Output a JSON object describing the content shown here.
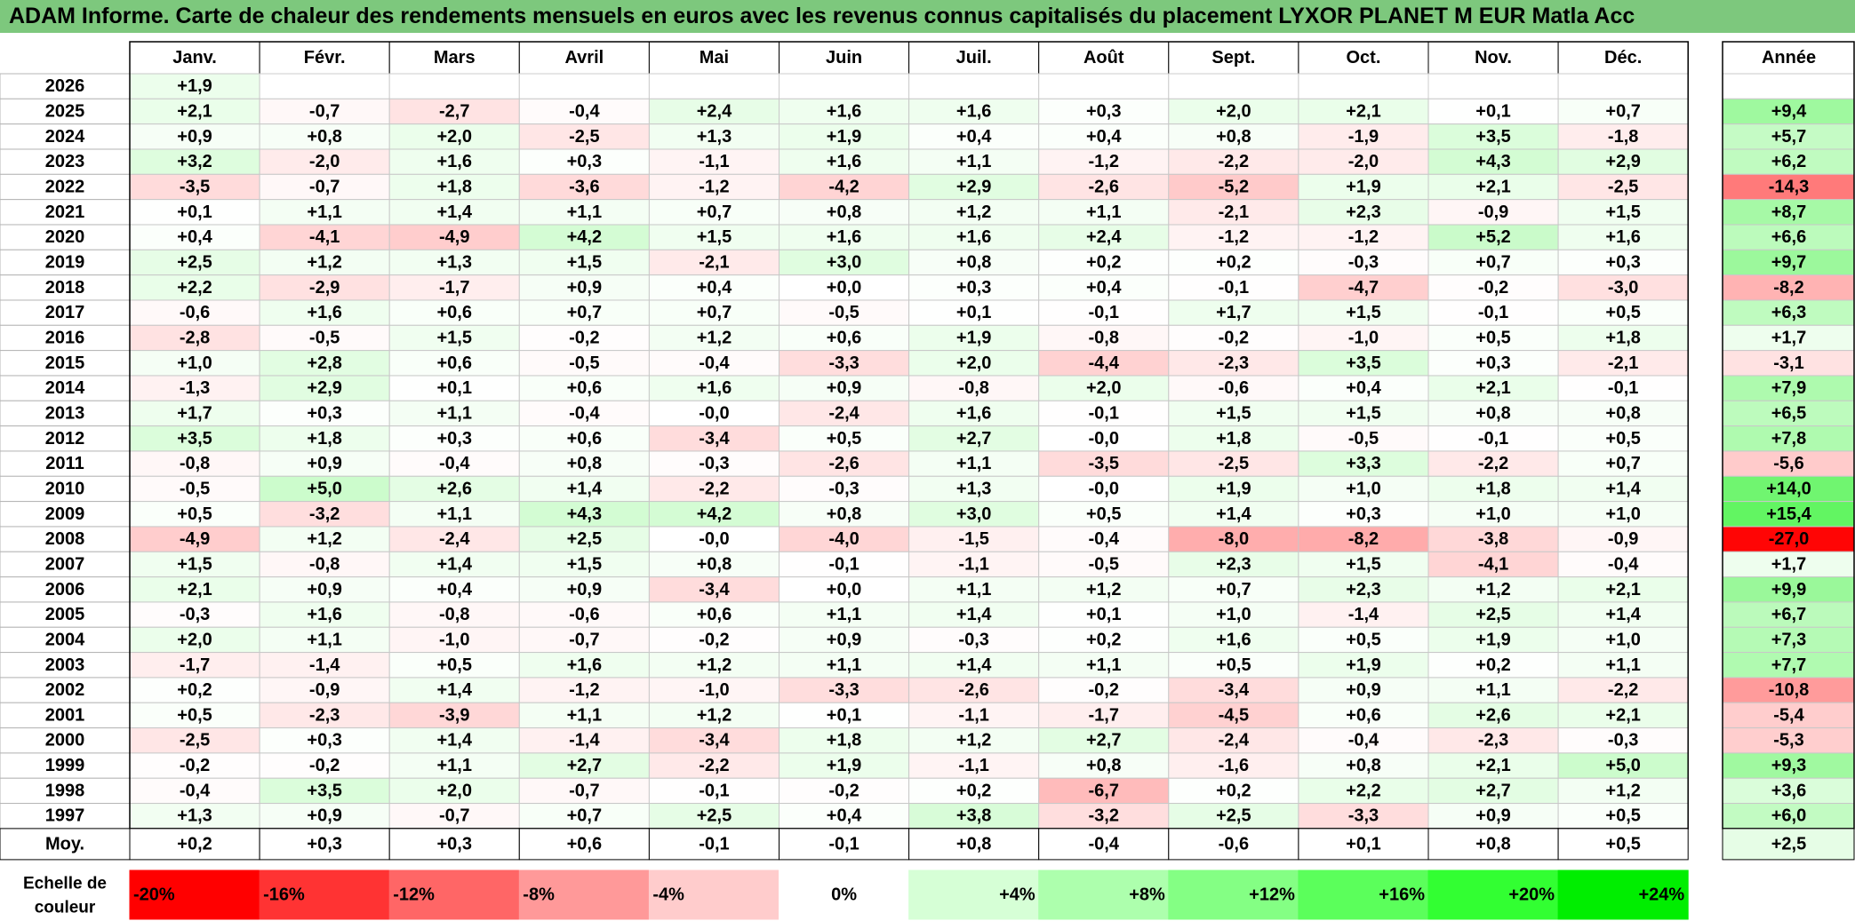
{
  "title": "ADAM Informe. Carte de chaleur des rendements mensuels en euros avec les revenus connus capitalisés du placement LYXOR PLANET M EUR Matla Acc",
  "chart_data": {
    "type": "heatmap",
    "title": "ADAM Informe. Carte de chaleur des rendements mensuels en euros avec les revenus connus capitalisés du placement LYXOR PLANET M EUR Matla Acc",
    "months": [
      "Janv.",
      "Févr.",
      "Mars",
      "Avril",
      "Mai",
      "Juin",
      "Juil.",
      "Août",
      "Sept.",
      "Oct.",
      "Nov.",
      "Déc."
    ],
    "year_header": "Année",
    "rows": [
      {
        "year": "2026",
        "values": [
          "+1,9",
          "",
          "",
          "",
          "",
          "",
          "",
          "",
          "",
          "",
          "",
          ""
        ],
        "annual": ""
      },
      {
        "year": "2025",
        "values": [
          "+2,1",
          "-0,7",
          "-2,7",
          "-0,4",
          "+2,4",
          "+1,6",
          "+1,6",
          "+0,3",
          "+2,0",
          "+2,1",
          "+0,1",
          "+0,7"
        ],
        "annual": "+9,4"
      },
      {
        "year": "2024",
        "values": [
          "+0,9",
          "+0,8",
          "+2,0",
          "-2,5",
          "+1,3",
          "+1,9",
          "+0,4",
          "+0,4",
          "+0,8",
          "-1,9",
          "+3,5",
          "-1,8"
        ],
        "annual": "+5,7"
      },
      {
        "year": "2023",
        "values": [
          "+3,2",
          "-2,0",
          "+1,6",
          "+0,3",
          "-1,1",
          "+1,6",
          "+1,1",
          "-1,2",
          "-2,2",
          "-2,0",
          "+4,3",
          "+2,9"
        ],
        "annual": "+6,2"
      },
      {
        "year": "2022",
        "values": [
          "-3,5",
          "-0,7",
          "+1,8",
          "-3,6",
          "-1,2",
          "-4,2",
          "+2,9",
          "-2,6",
          "-5,2",
          "+1,9",
          "+2,1",
          "-2,5"
        ],
        "annual": "-14,3"
      },
      {
        "year": "2021",
        "values": [
          "+0,1",
          "+1,1",
          "+1,4",
          "+1,1",
          "+0,7",
          "+0,8",
          "+1,2",
          "+1,1",
          "-2,1",
          "+2,3",
          "-0,9",
          "+1,5"
        ],
        "annual": "+8,7"
      },
      {
        "year": "2020",
        "values": [
          "+0,4",
          "-4,1",
          "-4,9",
          "+4,2",
          "+1,5",
          "+1,6",
          "+1,6",
          "+2,4",
          "-1,2",
          "-1,2",
          "+5,2",
          "+1,6"
        ],
        "annual": "+6,6"
      },
      {
        "year": "2019",
        "values": [
          "+2,5",
          "+1,2",
          "+1,3",
          "+1,5",
          "-2,1",
          "+3,0",
          "+0,8",
          "+0,2",
          "+0,2",
          "-0,3",
          "+0,7",
          "+0,3"
        ],
        "annual": "+9,7"
      },
      {
        "year": "2018",
        "values": [
          "+2,2",
          "-2,9",
          "-1,7",
          "+0,9",
          "+0,4",
          "+0,0",
          "+0,3",
          "+0,4",
          "-0,1",
          "-4,7",
          "-0,2",
          "-3,0"
        ],
        "annual": "-8,2"
      },
      {
        "year": "2017",
        "values": [
          "-0,6",
          "+1,6",
          "+0,6",
          "+0,7",
          "+0,7",
          "-0,5",
          "+0,1",
          "-0,1",
          "+1,7",
          "+1,5",
          "-0,1",
          "+0,5"
        ],
        "annual": "+6,3"
      },
      {
        "year": "2016",
        "values": [
          "-2,8",
          "-0,5",
          "+1,5",
          "-0,2",
          "+1,2",
          "+0,6",
          "+1,9",
          "-0,8",
          "-0,2",
          "-1,0",
          "+0,5",
          "+1,8"
        ],
        "annual": "+1,7"
      },
      {
        "year": "2015",
        "values": [
          "+1,0",
          "+2,8",
          "+0,6",
          "-0,5",
          "-0,4",
          "-3,3",
          "+2,0",
          "-4,4",
          "-2,3",
          "+3,5",
          "+0,3",
          "-2,1"
        ],
        "annual": "-3,1"
      },
      {
        "year": "2014",
        "values": [
          "-1,3",
          "+2,9",
          "+0,1",
          "+0,6",
          "+1,6",
          "+0,9",
          "-0,8",
          "+2,0",
          "-0,6",
          "+0,4",
          "+2,1",
          "-0,1"
        ],
        "annual": "+7,9"
      },
      {
        "year": "2013",
        "values": [
          "+1,7",
          "+0,3",
          "+1,1",
          "-0,4",
          "-0,0",
          "-2,4",
          "+1,6",
          "-0,1",
          "+1,5",
          "+1,5",
          "+0,8",
          "+0,8"
        ],
        "annual": "+6,5"
      },
      {
        "year": "2012",
        "values": [
          "+3,5",
          "+1,8",
          "+0,3",
          "+0,6",
          "-3,4",
          "+0,5",
          "+2,7",
          "-0,0",
          "+1,8",
          "-0,5",
          "-0,1",
          "+0,5"
        ],
        "annual": "+7,8"
      },
      {
        "year": "2011",
        "values": [
          "-0,8",
          "+0,9",
          "-0,4",
          "+0,8",
          "-0,3",
          "-2,6",
          "+1,1",
          "-3,5",
          "-2,5",
          "+3,3",
          "-2,2",
          "+0,7"
        ],
        "annual": "-5,6"
      },
      {
        "year": "2010",
        "values": [
          "-0,5",
          "+5,0",
          "+2,6",
          "+1,4",
          "-2,2",
          "-0,3",
          "+1,3",
          "-0,0",
          "+1,9",
          "+1,0",
          "+1,8",
          "+1,4"
        ],
        "annual": "+14,0"
      },
      {
        "year": "2009",
        "values": [
          "+0,5",
          "-3,2",
          "+1,1",
          "+4,3",
          "+4,2",
          "+0,8",
          "+3,0",
          "+0,5",
          "+1,4",
          "+0,3",
          "+1,0",
          "+1,0"
        ],
        "annual": "+15,4"
      },
      {
        "year": "2008",
        "values": [
          "-4,9",
          "+1,2",
          "-2,4",
          "+2,5",
          "-0,0",
          "-4,0",
          "-1,5",
          "-0,4",
          "-8,0",
          "-8,2",
          "-3,8",
          "-0,9"
        ],
        "annual": "-27,0"
      },
      {
        "year": "2007",
        "values": [
          "+1,5",
          "-0,8",
          "+1,4",
          "+1,5",
          "+0,8",
          "-0,1",
          "-1,1",
          "-0,5",
          "+2,3",
          "+1,5",
          "-4,1",
          "-0,4"
        ],
        "annual": "+1,7"
      },
      {
        "year": "2006",
        "values": [
          "+2,1",
          "+0,9",
          "+0,4",
          "+0,9",
          "-3,4",
          "+0,0",
          "+1,1",
          "+1,2",
          "+0,7",
          "+2,3",
          "+1,2",
          "+2,1"
        ],
        "annual": "+9,9"
      },
      {
        "year": "2005",
        "values": [
          "-0,3",
          "+1,6",
          "-0,8",
          "-0,6",
          "+0,6",
          "+1,1",
          "+1,4",
          "+0,1",
          "+1,0",
          "-1,4",
          "+2,5",
          "+1,4"
        ],
        "annual": "+6,7"
      },
      {
        "year": "2004",
        "values": [
          "+2,0",
          "+1,1",
          "-1,0",
          "-0,7",
          "-0,2",
          "+0,9",
          "-0,3",
          "+0,2",
          "+1,6",
          "+0,5",
          "+1,9",
          "+1,0"
        ],
        "annual": "+7,3"
      },
      {
        "year": "2003",
        "values": [
          "-1,7",
          "-1,4",
          "+0,5",
          "+1,6",
          "+1,2",
          "+1,1",
          "+1,4",
          "+1,1",
          "+0,5",
          "+1,9",
          "+0,2",
          "+1,1"
        ],
        "annual": "+7,7"
      },
      {
        "year": "2002",
        "values": [
          "+0,2",
          "-0,9",
          "+1,4",
          "-1,2",
          "-1,0",
          "-3,3",
          "-2,6",
          "-0,2",
          "-3,4",
          "+0,9",
          "+1,1",
          "-2,2"
        ],
        "annual": "-10,8"
      },
      {
        "year": "2001",
        "values": [
          "+0,5",
          "-2,3",
          "-3,9",
          "+1,1",
          "+1,2",
          "+0,1",
          "-1,1",
          "-1,7",
          "-4,5",
          "+0,6",
          "+2,6",
          "+2,1"
        ],
        "annual": "-5,4"
      },
      {
        "year": "2000",
        "values": [
          "-2,5",
          "+0,3",
          "+1,4",
          "-1,4",
          "-3,4",
          "+1,8",
          "+1,2",
          "+2,7",
          "-2,4",
          "-0,4",
          "-2,3",
          "-0,3"
        ],
        "annual": "-5,3"
      },
      {
        "year": "1999",
        "values": [
          "-0,2",
          "-0,2",
          "+1,1",
          "+2,7",
          "-2,2",
          "+1,9",
          "-1,1",
          "+0,8",
          "-1,6",
          "+0,8",
          "+2,1",
          "+5,0"
        ],
        "annual": "+9,3"
      },
      {
        "year": "1998",
        "values": [
          "-0,4",
          "+3,5",
          "+2,0",
          "-0,7",
          "-0,1",
          "-0,2",
          "+0,2",
          "-6,7",
          "+0,2",
          "+2,2",
          "+2,7",
          "+1,2"
        ],
        "annual": "+3,6"
      },
      {
        "year": "1997",
        "values": [
          "+1,3",
          "+0,9",
          "-0,7",
          "+0,7",
          "+2,5",
          "+0,4",
          "+3,8",
          "-3,2",
          "+2,5",
          "-3,3",
          "+0,9",
          "+0,5"
        ],
        "annual": "+6,0"
      }
    ],
    "average": {
      "label": "Moy.",
      "values": [
        "+0,2",
        "+0,3",
        "+0,3",
        "+0,6",
        "-0,1",
        "-0,1",
        "+0,8",
        "-0,4",
        "-0,6",
        "+0,1",
        "+0,8",
        "+0,5"
      ],
      "annual": "+2,5"
    },
    "scale": {
      "label_line1": "Echelle de",
      "label_line2": "couleur",
      "stops": [
        {
          "label": "-20%",
          "value": -20,
          "color": "#ff0000"
        },
        {
          "label": "-16%",
          "value": -16,
          "color": "#ff3333"
        },
        {
          "label": "-12%",
          "value": -12,
          "color": "#ff6666"
        },
        {
          "label": "-8%",
          "value": -8,
          "color": "#ff9999"
        },
        {
          "label": "-4%",
          "value": -4,
          "color": "#ffcccc"
        },
        {
          "label": "0%",
          "value": 0,
          "color": "#ffffff"
        },
        {
          "label": "+4%",
          "value": 4,
          "color": "#d6ffd6"
        },
        {
          "label": "+8%",
          "value": 8,
          "color": "#adffad"
        },
        {
          "label": "+12%",
          "value": 12,
          "color": "#84ff84"
        },
        {
          "label": "+16%",
          "value": 16,
          "color": "#5bff5b"
        },
        {
          "label": "+20%",
          "value": 20,
          "color": "#32ff32"
        },
        {
          "label": "+24%",
          "value": 24,
          "color": "#00ee00"
        }
      ]
    }
  }
}
